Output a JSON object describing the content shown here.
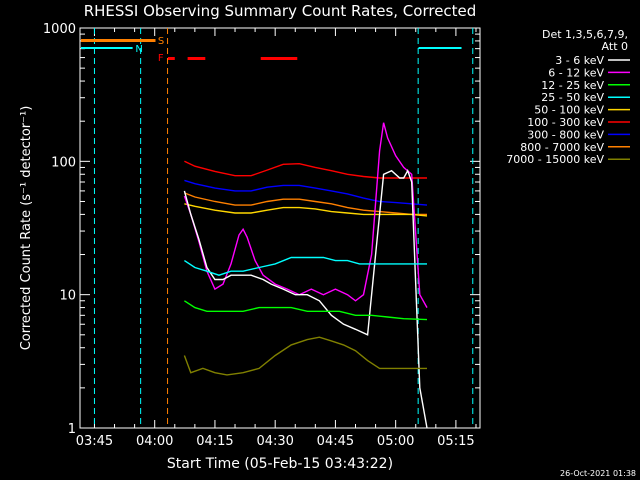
{
  "chart_data": {
    "type": "line",
    "title": "RHESSI Observing Summary Count Rates, Corrected",
    "xlabel": "Start Time (05-Feb-15 03:43:22)",
    "ylabel": "Corrected Count Rate (s⁻¹ detector⁻¹)",
    "y_scale": "log",
    "ylim": [
      1,
      1000
    ],
    "xlim_minutes": [
      221.4,
      321.0
    ],
    "x_ticks": [
      {
        "label": "03:45",
        "minute": 225
      },
      {
        "label": "04:00",
        "minute": 240
      },
      {
        "label": "04:15",
        "minute": 255
      },
      {
        "label": "04:30",
        "minute": 270
      },
      {
        "label": "04:45",
        "minute": 285
      },
      {
        "label": "05:00",
        "minute": 300
      },
      {
        "label": "05:15",
        "minute": 315
      }
    ],
    "y_ticks": [
      {
        "label": "1",
        "value": 1
      },
      {
        "label": "10",
        "value": 10
      },
      {
        "label": "100",
        "value": 100
      },
      {
        "label": "1000",
        "value": 1000
      }
    ],
    "legend": {
      "placement": "top-right",
      "header": [
        "Det 1,3,5,6,7,9,",
        "Att 0"
      ],
      "entries": [
        {
          "label": "3 - 6 keV",
          "color": "#ffffff"
        },
        {
          "label": "6 - 12 keV",
          "color": "#ff00ff"
        },
        {
          "label": "12 - 25 keV",
          "color": "#00ff00"
        },
        {
          "label": "25 - 50 keV",
          "color": "#00ffff"
        },
        {
          "label": "50 - 100 keV",
          "color": "#ffd700"
        },
        {
          "label": "100 - 300 keV",
          "color": "#ff0000"
        },
        {
          "label": "300 - 800 keV",
          "color": "#0000ff"
        },
        {
          "label": "800 - 7000 keV",
          "color": "#ff8000"
        },
        {
          "label": "7000 - 15000 keV",
          "color": "#808000"
        }
      ]
    },
    "flags": [
      {
        "label": "S",
        "color": "#ff8000"
      },
      {
        "label": "N",
        "color": "#00ffff"
      },
      {
        "label": "F",
        "color": "#ff0000"
      }
    ],
    "series": [
      {
        "color": "#ff0000",
        "points": [
          [
            247.4,
            100
          ],
          [
            250,
            92
          ],
          [
            255,
            84
          ],
          [
            260,
            78
          ],
          [
            264,
            78
          ],
          [
            268,
            86
          ],
          [
            272,
            95
          ],
          [
            276,
            96
          ],
          [
            280,
            90
          ],
          [
            284,
            85
          ],
          [
            288,
            80
          ],
          [
            292,
            77
          ],
          [
            296,
            75
          ],
          [
            300,
            75
          ],
          [
            304,
            75
          ],
          [
            307.8,
            75
          ]
        ]
      },
      {
        "color": "#0000ff",
        "points": [
          [
            247.4,
            72
          ],
          [
            250,
            68
          ],
          [
            255,
            63
          ],
          [
            260,
            60
          ],
          [
            264,
            60
          ],
          [
            268,
            64
          ],
          [
            272,
            66
          ],
          [
            276,
            66
          ],
          [
            280,
            63
          ],
          [
            284,
            60
          ],
          [
            288,
            57
          ],
          [
            292,
            53
          ],
          [
            296,
            50
          ],
          [
            300,
            49
          ],
          [
            304,
            48
          ],
          [
            307.8,
            47
          ]
        ]
      },
      {
        "color": "#ff8000",
        "points": [
          [
            247.4,
            58
          ],
          [
            250,
            54
          ],
          [
            255,
            50
          ],
          [
            260,
            47
          ],
          [
            264,
            47
          ],
          [
            268,
            50
          ],
          [
            272,
            52
          ],
          [
            276,
            52
          ],
          [
            280,
            50
          ],
          [
            284,
            48
          ],
          [
            288,
            45
          ],
          [
            292,
            43
          ],
          [
            296,
            42
          ],
          [
            300,
            41
          ],
          [
            304,
            40
          ],
          [
            307.8,
            40
          ]
        ]
      },
      {
        "color": "#ffd700",
        "points": [
          [
            247.4,
            48
          ],
          [
            250,
            46
          ],
          [
            255,
            43
          ],
          [
            260,
            41
          ],
          [
            264,
            41
          ],
          [
            268,
            43
          ],
          [
            272,
            45
          ],
          [
            276,
            45
          ],
          [
            280,
            44
          ],
          [
            284,
            42
          ],
          [
            288,
            41
          ],
          [
            292,
            40
          ],
          [
            296,
            40
          ],
          [
            300,
            40
          ],
          [
            304,
            40
          ],
          [
            307.8,
            39
          ]
        ]
      },
      {
        "color": "#ff00ff",
        "points": [
          [
            247.4,
            55
          ],
          [
            249,
            40
          ],
          [
            251,
            25
          ],
          [
            253,
            15
          ],
          [
            255,
            11
          ],
          [
            257,
            12
          ],
          [
            259,
            17
          ],
          [
            261,
            28
          ],
          [
            262,
            31
          ],
          [
            263,
            27
          ],
          [
            265,
            18
          ],
          [
            267,
            14
          ],
          [
            270,
            12
          ],
          [
            273,
            11
          ],
          [
            276,
            10
          ],
          [
            279,
            11
          ],
          [
            282,
            10
          ],
          [
            285,
            11
          ],
          [
            288,
            10
          ],
          [
            290,
            9
          ],
          [
            292,
            10
          ],
          [
            294,
            20
          ],
          [
            296,
            120
          ],
          [
            297,
            195
          ],
          [
            298,
            150
          ],
          [
            300,
            110
          ],
          [
            302,
            90
          ],
          [
            304,
            80
          ],
          [
            306,
            10
          ],
          [
            307.8,
            8
          ]
        ]
      },
      {
        "color": "#ffffff",
        "points": [
          [
            247.4,
            60
          ],
          [
            249,
            40
          ],
          [
            251,
            26
          ],
          [
            253,
            16
          ],
          [
            255,
            13
          ],
          [
            257,
            13
          ],
          [
            259,
            14
          ],
          [
            261,
            14
          ],
          [
            264,
            14
          ],
          [
            267,
            13
          ],
          [
            269,
            12
          ],
          [
            272,
            11
          ],
          [
            275,
            10
          ],
          [
            278,
            10
          ],
          [
            281,
            9
          ],
          [
            284,
            7
          ],
          [
            287,
            6
          ],
          [
            290,
            5.5
          ],
          [
            293,
            5
          ],
          [
            295,
            20
          ],
          [
            297,
            80
          ],
          [
            299,
            85
          ],
          [
            301,
            75
          ],
          [
            302,
            75
          ],
          [
            303,
            85
          ],
          [
            304,
            70
          ],
          [
            306,
            2
          ],
          [
            307.8,
            1
          ]
        ]
      },
      {
        "color": "#00ffff",
        "points": [
          [
            247.4,
            18
          ],
          [
            250,
            16
          ],
          [
            253,
            15
          ],
          [
            256,
            14
          ],
          [
            259,
            15
          ],
          [
            262,
            15
          ],
          [
            266,
            16
          ],
          [
            270,
            17
          ],
          [
            274,
            19
          ],
          [
            278,
            19
          ],
          [
            282,
            19
          ],
          [
            285,
            18
          ],
          [
            288,
            18
          ],
          [
            291,
            17
          ],
          [
            294,
            17
          ],
          [
            297,
            17
          ],
          [
            300,
            17
          ],
          [
            303,
            17
          ],
          [
            307.8,
            17
          ]
        ]
      },
      {
        "color": "#00ff00",
        "points": [
          [
            247.4,
            9
          ],
          [
            250,
            8
          ],
          [
            253,
            7.5
          ],
          [
            256,
            7.5
          ],
          [
            259,
            7.5
          ],
          [
            262,
            7.5
          ],
          [
            266,
            8
          ],
          [
            270,
            8
          ],
          [
            274,
            8
          ],
          [
            278,
            7.5
          ],
          [
            282,
            7.5
          ],
          [
            286,
            7.5
          ],
          [
            290,
            7
          ],
          [
            294,
            7
          ],
          [
            298,
            6.8
          ],
          [
            302,
            6.6
          ],
          [
            307.8,
            6.5
          ]
        ]
      },
      {
        "color": "#808000",
        "points": [
          [
            247.4,
            3.5
          ],
          [
            249,
            2.6
          ],
          [
            252,
            2.8
          ],
          [
            255,
            2.6
          ],
          [
            258,
            2.5
          ],
          [
            262,
            2.6
          ],
          [
            266,
            2.8
          ],
          [
            270,
            3.5
          ],
          [
            274,
            4.2
          ],
          [
            278,
            4.6
          ],
          [
            281,
            4.8
          ],
          [
            284,
            4.5
          ],
          [
            287,
            4.2
          ],
          [
            290,
            3.8
          ],
          [
            293,
            3.2
          ],
          [
            296,
            2.8
          ],
          [
            300,
            2.8
          ],
          [
            304,
            2.8
          ],
          [
            307.8,
            2.8
          ]
        ]
      }
    ],
    "attenuator_markers_minutes": [
      225.0,
      236.5,
      243.2,
      305.6,
      319.2
    ]
  },
  "timestamp": "26-Oct-2021 01:38"
}
